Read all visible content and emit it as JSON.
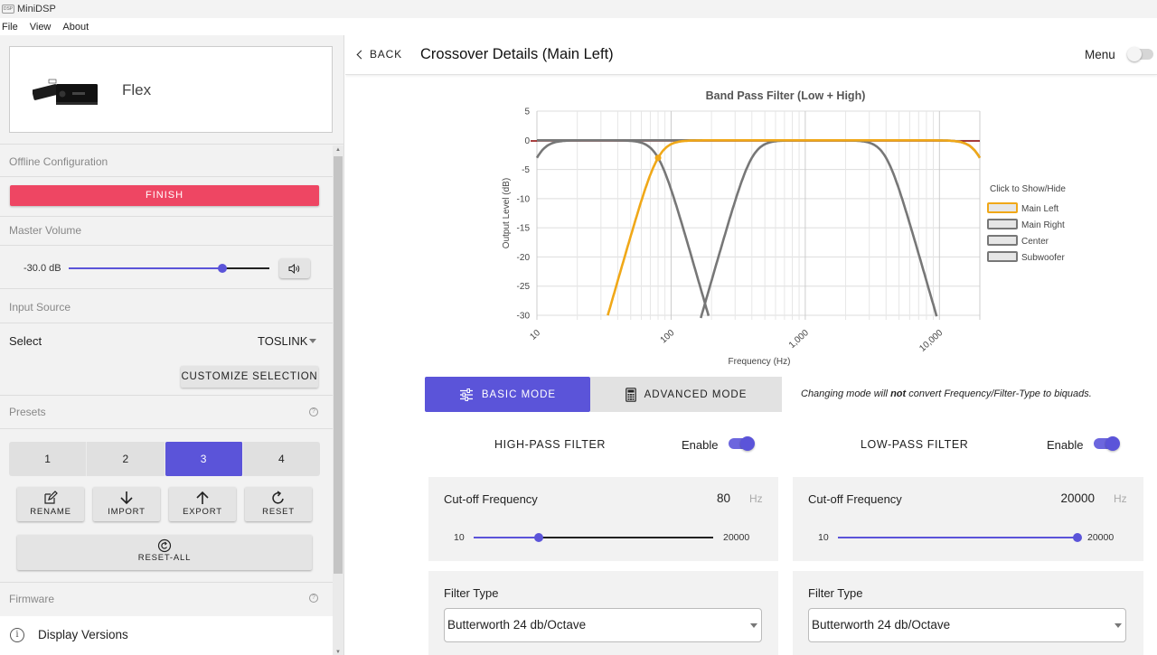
{
  "window": {
    "title": "MiniDSP",
    "logo_text": "DSP"
  },
  "menubar": {
    "items": [
      "File",
      "View",
      "About"
    ]
  },
  "sidebar": {
    "device_name": "Flex",
    "offline_label": "Offline Configuration",
    "finish_label": "FINISH",
    "master_volume_label": "Master Volume",
    "volume_value": "-30.0 dB",
    "volume_level": 0.765,
    "input_source_label": "Input Source",
    "select_label": "Select",
    "select_value": "TOSLINK",
    "customize_label": "CUSTOMIZE SELECTION",
    "presets_label": "Presets",
    "presets": [
      "1",
      "2",
      "3",
      "4"
    ],
    "active_preset": "3",
    "actions": [
      {
        "label": "RENAME",
        "icon": "edit-icon"
      },
      {
        "label": "IMPORT",
        "icon": "arrow-down-icon"
      },
      {
        "label": "EXPORT",
        "icon": "arrow-up-icon"
      },
      {
        "label": "RESET",
        "icon": "refresh-icon"
      }
    ],
    "reset_all_label": "RESET-ALL",
    "firmware_label": "Firmware",
    "help_glyph": "?",
    "display_versions_label": "Display Versions",
    "info_glyph": "i"
  },
  "header": {
    "back_label": "BACK",
    "title": "Crossover Details (Main Left)",
    "menu_label": "Menu",
    "menu_toggle_on": false
  },
  "colors": {
    "accent": "#5b54d9",
    "finish": "#ee4663",
    "main_left": "#f0a818",
    "main_right": "#777777",
    "zero_line": "#8b0000"
  },
  "chart_data": {
    "type": "line",
    "title": "Band Pass Filter (Low + High)",
    "xlabel": "Frequency (Hz)",
    "ylabel": "Output Level (dB)",
    "x_scale": "log",
    "xlim": [
      10,
      20000
    ],
    "ylim": [
      -30,
      5
    ],
    "y_ticks": [
      "5",
      "0",
      "-5",
      "-10",
      "-15",
      "-20",
      "-25",
      "-30"
    ],
    "x_ticks": [
      "10",
      "100",
      "1,000",
      "10,000"
    ],
    "legend_title": "Click to Show/Hide",
    "legend_position": "right",
    "grid": true,
    "series": [
      {
        "name": "Main Left",
        "color": "#f0a818",
        "type": "bandpass",
        "hp": 80,
        "lp": 20000,
        "order": 4,
        "marker_at_hp": true
      },
      {
        "name": "Main Right",
        "color": "#777777",
        "type": "lowpass",
        "lp": 80,
        "order": 4
      },
      {
        "name": "Center",
        "color": "#777777",
        "type": "bandpass",
        "hp": 400,
        "lp": 4000,
        "order": 4
      },
      {
        "name": "Subwoofer",
        "color": "#777777",
        "type": "bandpass",
        "hp": 10,
        "lp": 20000,
        "order": 4
      }
    ]
  },
  "modes": {
    "basic_label": "BASIC MODE",
    "advanced_label": "ADVANCED MODE",
    "active": "basic",
    "note_pre": "Changing mode will ",
    "note_bold": "not",
    "note_post": " convert Frequency/Filter-Type to biquads."
  },
  "high_pass": {
    "heading": "HIGH-PASS FILTER",
    "enable_label": "Enable",
    "enabled": true,
    "cutoff_label": "Cut-off Frequency",
    "cutoff_value": "80",
    "unit": "Hz",
    "min": "10",
    "max": "20000",
    "slider_level": 0.272,
    "filter_type_label": "Filter Type",
    "filter_type": "Butterworth 24 db/Octave"
  },
  "low_pass": {
    "heading": "LOW-PASS FILTER",
    "enable_label": "Enable",
    "enabled": true,
    "cutoff_label": "Cut-off Frequency",
    "cutoff_value": "20000",
    "unit": "Hz",
    "min": "10",
    "max": "20000",
    "slider_level": 1.0,
    "filter_type_label": "Filter Type",
    "filter_type": "Butterworth 24 db/Octave"
  }
}
